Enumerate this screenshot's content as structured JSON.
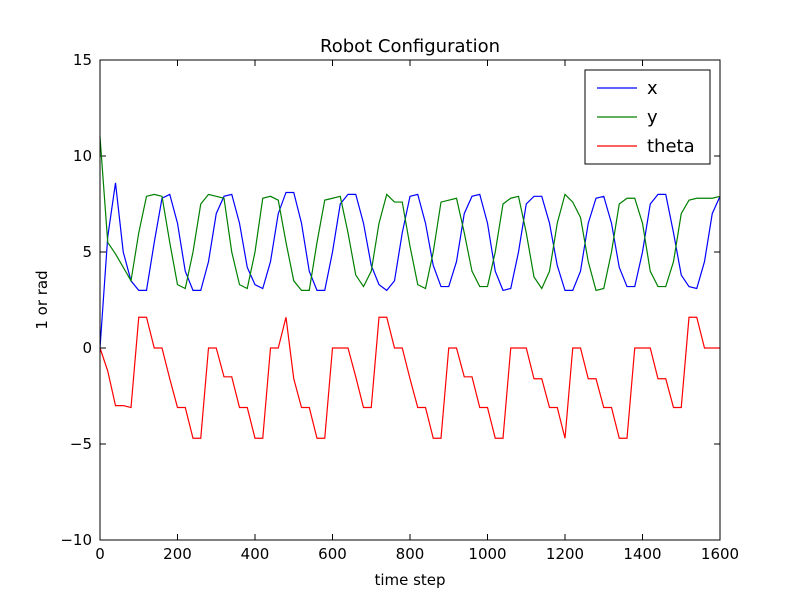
{
  "chart_data": {
    "type": "line",
    "title": "Robot Configuration",
    "xlabel": "time step",
    "ylabel": "1 or rad",
    "xlim": [
      0,
      1600
    ],
    "ylim": [
      -10,
      15
    ],
    "xticks": [
      0,
      200,
      400,
      600,
      800,
      1000,
      1200,
      1400,
      1600
    ],
    "yticks": [
      {
        "value": -10,
        "label": "−10"
      },
      {
        "value": -5,
        "label": "−5"
      },
      0,
      5,
      10,
      15
    ],
    "legend": "upper right",
    "x": [
      0,
      20,
      40,
      60,
      80,
      100,
      120,
      140,
      160,
      180,
      200,
      220,
      240,
      260,
      280,
      300,
      320,
      340,
      360,
      380,
      400,
      420,
      440,
      460,
      480,
      500,
      520,
      540,
      560,
      580,
      600,
      620,
      640,
      660,
      680,
      700,
      720,
      740,
      760,
      780,
      800,
      820,
      840,
      860,
      880,
      900,
      920,
      940,
      960,
      980,
      1000,
      1020,
      1040,
      1060,
      1080,
      1100,
      1120,
      1140,
      1160,
      1180,
      1200,
      1220,
      1240,
      1260,
      1280,
      1300,
      1320,
      1340,
      1360,
      1380,
      1400,
      1420,
      1440,
      1460,
      1480,
      1500,
      1520,
      1540,
      1560,
      1580,
      1600
    ],
    "series": [
      {
        "name": "x",
        "color": "#0000ff",
        "values": [
          0,
          5.8,
          8.6,
          5,
          3.5,
          3,
          3,
          5.5,
          7.8,
          8,
          6.5,
          4,
          3,
          3,
          4.5,
          7,
          7.9,
          8,
          6.5,
          4.2,
          3.3,
          3.1,
          4.5,
          7,
          8.1,
          8.1,
          6.5,
          4,
          3,
          3,
          5,
          7.5,
          8,
          8,
          6.5,
          4.3,
          3.3,
          3,
          3.5,
          6,
          7.9,
          8,
          6.5,
          4.3,
          3.2,
          3.2,
          4.5,
          7,
          7.9,
          8,
          6.5,
          4,
          3,
          3.1,
          5,
          7.5,
          7.9,
          7.9,
          6.5,
          4.3,
          3,
          3,
          4,
          6.5,
          7.8,
          7.9,
          6.5,
          4.2,
          3.2,
          3.2,
          5,
          7.5,
          8,
          8,
          6,
          3.8,
          3.2,
          3.1,
          4.5,
          7,
          7.9
        ]
      },
      {
        "name": "y",
        "color": "#008000",
        "values": [
          11,
          5.5,
          4.9,
          4.2,
          3.5,
          6,
          7.9,
          8,
          7.9,
          5.5,
          3.3,
          3.1,
          5,
          7.5,
          8,
          7.9,
          7.8,
          5,
          3.3,
          3.1,
          5,
          7.8,
          7.9,
          7.7,
          5.5,
          3.5,
          3,
          3,
          5.5,
          7.7,
          7.8,
          7.9,
          6,
          3.8,
          3.2,
          4,
          6.5,
          8,
          7.6,
          7.6,
          5.3,
          3.3,
          3.1,
          5,
          7.6,
          7.7,
          7.8,
          6,
          4,
          3.2,
          3.2,
          5,
          7.5,
          7.8,
          7.9,
          6,
          3.7,
          3.1,
          4,
          6.5,
          8,
          7.6,
          6.8,
          4.5,
          3,
          3.1,
          5,
          7.5,
          7.8,
          7.8,
          6.5,
          4,
          3.2,
          3.2,
          4.5,
          7,
          7.7,
          7.8,
          7.8,
          7.8,
          7.9
        ]
      },
      {
        "name": "theta",
        "color": "#ff0000",
        "values": [
          0,
          -1.2,
          -3,
          -3,
          -3.1,
          1.6,
          1.6,
          0,
          0,
          -1.6,
          -3.1,
          -3.1,
          -4.7,
          -4.7,
          0,
          0,
          -1.5,
          -1.5,
          -3.1,
          -3.1,
          -4.7,
          -4.7,
          0,
          0,
          1.6,
          -1.6,
          -3.1,
          -3.1,
          -4.7,
          -4.7,
          0,
          0,
          0,
          -1.5,
          -3.1,
          -3.1,
          1.6,
          1.6,
          0,
          0,
          -1.6,
          -3.1,
          -3.1,
          -4.7,
          -4.7,
          0,
          0,
          -1.5,
          -1.5,
          -3.1,
          -3.1,
          -4.7,
          -4.7,
          0,
          0,
          0,
          -1.6,
          -1.6,
          -3.1,
          -3.1,
          -4.7,
          0,
          0,
          -1.6,
          -1.6,
          -3.1,
          -3.1,
          -4.7,
          -4.7,
          0,
          0,
          0,
          -1.6,
          -1.6,
          -3.1,
          -3.1,
          1.6,
          1.6,
          0,
          0,
          0
        ]
      }
    ]
  }
}
